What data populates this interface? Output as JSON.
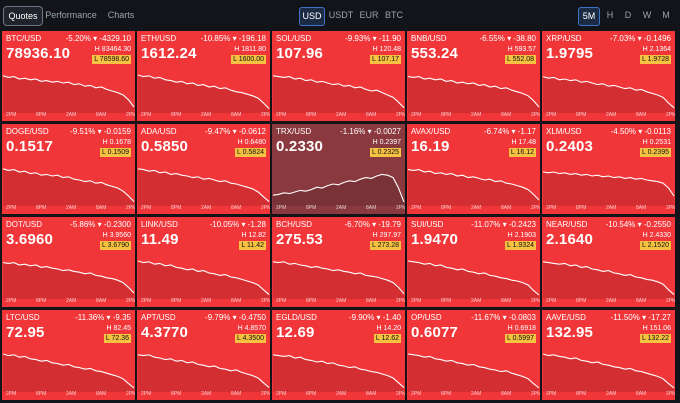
{
  "tabs": [
    "Quotes",
    "Performance",
    "Charts"
  ],
  "currencies": [
    "USD",
    "USDT",
    "EUR",
    "BTC"
  ],
  "timeframes": [
    "5M",
    "H",
    "D",
    "W",
    "M"
  ],
  "x_labels": [
    "2PM",
    "8PM",
    "2AM",
    "8AM",
    "2PM"
  ],
  "colors": {
    "down": "#f13639",
    "neutral": "#8a3a3f",
    "low_badge": "#f5c242",
    "accent": "#3d74c7"
  },
  "tiles": [
    {
      "sym": "BTC/USD",
      "change": "-5.20% ▾ -4329.10",
      "price": "78936.10",
      "high": "H 83464.30",
      "low": "L 78598.60",
      "neutral": false,
      "series": [
        0.88,
        0.84,
        0.86,
        0.8,
        0.82,
        0.78,
        0.8,
        0.74,
        0.76,
        0.72,
        0.74,
        0.7,
        0.72,
        0.66,
        0.68,
        0.62,
        0.64,
        0.58,
        0.6,
        0.54,
        0.5,
        0.46,
        0.4,
        0.28,
        0.1
      ]
    },
    {
      "sym": "ETH/USD",
      "change": "-10.85% ▾ -196.18",
      "price": "1612.24",
      "high": "H 1811.80",
      "low": "L 1600.00",
      "neutral": false,
      "series": [
        0.9,
        0.86,
        0.88,
        0.82,
        0.84,
        0.78,
        0.76,
        0.72,
        0.74,
        0.68,
        0.7,
        0.64,
        0.66,
        0.6,
        0.62,
        0.56,
        0.58,
        0.52,
        0.48,
        0.46,
        0.42,
        0.38,
        0.32,
        0.2,
        0.06
      ]
    },
    {
      "sym": "SOL/USD",
      "change": "-9.93% ▾ -11.90",
      "price": "107.96",
      "high": "H 120.48",
      "low": "L 107.17",
      "neutral": false,
      "series": [
        0.88,
        0.86,
        0.84,
        0.86,
        0.8,
        0.82,
        0.76,
        0.78,
        0.72,
        0.74,
        0.7,
        0.66,
        0.68,
        0.62,
        0.64,
        0.58,
        0.6,
        0.54,
        0.5,
        0.52,
        0.46,
        0.4,
        0.34,
        0.22,
        0.08
      ]
    },
    {
      "sym": "BNB/USD",
      "change": "-6.55% ▾ -38.80",
      "price": "553.24",
      "high": "H 593.57",
      "low": "L 552.08",
      "neutral": false,
      "series": [
        0.86,
        0.84,
        0.86,
        0.8,
        0.82,
        0.78,
        0.8,
        0.74,
        0.76,
        0.7,
        0.72,
        0.68,
        0.7,
        0.64,
        0.66,
        0.6,
        0.62,
        0.56,
        0.58,
        0.52,
        0.48,
        0.44,
        0.38,
        0.26,
        0.1
      ]
    },
    {
      "sym": "XRP/USD",
      "change": "-7.03% ▾ -0.1496",
      "price": "1.9795",
      "high": "H 2.1364",
      "low": "L 1.9728",
      "neutral": false,
      "series": [
        0.86,
        0.82,
        0.84,
        0.78,
        0.8,
        0.76,
        0.78,
        0.72,
        0.74,
        0.7,
        0.66,
        0.68,
        0.62,
        0.64,
        0.6,
        0.56,
        0.58,
        0.52,
        0.54,
        0.48,
        0.44,
        0.4,
        0.34,
        0.2,
        0.08
      ]
    },
    {
      "sym": "DOGE/USD",
      "change": "-9.51% ▾ -0.0159",
      "price": "0.1517",
      "high": "H 0.1678",
      "low": "L 0.1509",
      "neutral": false,
      "series": [
        0.88,
        0.84,
        0.86,
        0.8,
        0.82,
        0.76,
        0.78,
        0.72,
        0.74,
        0.7,
        0.72,
        0.66,
        0.68,
        0.62,
        0.6,
        0.56,
        0.58,
        0.52,
        0.54,
        0.48,
        0.44,
        0.4,
        0.32,
        0.2,
        0.06
      ]
    },
    {
      "sym": "ADA/USD",
      "change": "-9.47% ▾ -0.0612",
      "price": "0.5850",
      "high": "H 0.6480",
      "low": "L 0.5824",
      "neutral": false,
      "series": [
        0.88,
        0.86,
        0.82,
        0.84,
        0.78,
        0.8,
        0.74,
        0.76,
        0.72,
        0.7,
        0.66,
        0.68,
        0.62,
        0.64,
        0.6,
        0.56,
        0.58,
        0.52,
        0.5,
        0.46,
        0.42,
        0.38,
        0.3,
        0.18,
        0.06
      ]
    },
    {
      "sym": "TRX/USD",
      "change": "-1.16% ▾ -0.0027",
      "price": "0.2330",
      "high": "H 0.2397",
      "low": "L 0.2325",
      "neutral": true,
      "series": [
        0.22,
        0.24,
        0.28,
        0.26,
        0.3,
        0.34,
        0.32,
        0.36,
        0.42,
        0.4,
        0.46,
        0.5,
        0.48,
        0.54,
        0.58,
        0.56,
        0.62,
        0.66,
        0.64,
        0.7,
        0.74,
        0.72,
        0.66,
        0.4,
        0.05
      ]
    },
    {
      "sym": "AVAX/USD",
      "change": "-6.74% ▾ -1.17",
      "price": "16.19",
      "high": "H 17.48",
      "low": "L 16.12",
      "neutral": false,
      "series": [
        0.86,
        0.84,
        0.86,
        0.8,
        0.82,
        0.76,
        0.78,
        0.74,
        0.76,
        0.7,
        0.72,
        0.66,
        0.68,
        0.64,
        0.6,
        0.62,
        0.56,
        0.58,
        0.52,
        0.5,
        0.46,
        0.42,
        0.36,
        0.24,
        0.1
      ]
    },
    {
      "sym": "XLM/USD",
      "change": "-4.50% ▾ -0.0113",
      "price": "0.2403",
      "high": "H 0.2531",
      "low": "L 0.2395",
      "neutral": false,
      "series": [
        0.8,
        0.78,
        0.8,
        0.76,
        0.78,
        0.74,
        0.76,
        0.72,
        0.74,
        0.7,
        0.72,
        0.68,
        0.7,
        0.66,
        0.68,
        0.64,
        0.66,
        0.62,
        0.64,
        0.6,
        0.58,
        0.56,
        0.52,
        0.4,
        0.2
      ]
    },
    {
      "sym": "DOT/USD",
      "change": "-5.86% ▾ -0.2300",
      "price": "3.6960",
      "high": "H 3.9560",
      "low": "L 3.6790",
      "neutral": false,
      "series": [
        0.86,
        0.84,
        0.86,
        0.8,
        0.82,
        0.78,
        0.8,
        0.74,
        0.76,
        0.72,
        0.7,
        0.66,
        0.68,
        0.64,
        0.62,
        0.58,
        0.6,
        0.54,
        0.52,
        0.48,
        0.46,
        0.42,
        0.36,
        0.24,
        0.1
      ]
    },
    {
      "sym": "LINK/USD",
      "change": "-10.05% ▾ -1.28",
      "price": "11.49",
      "high": "H 12.82",
      "low": "L 11.42",
      "neutral": false,
      "series": [
        0.9,
        0.86,
        0.88,
        0.82,
        0.84,
        0.78,
        0.8,
        0.74,
        0.72,
        0.68,
        0.7,
        0.64,
        0.66,
        0.6,
        0.58,
        0.54,
        0.56,
        0.5,
        0.48,
        0.44,
        0.4,
        0.36,
        0.3,
        0.18,
        0.06
      ]
    },
    {
      "sym": "BCH/USD",
      "change": "-6.70% ▾ -19.79",
      "price": "275.53",
      "high": "H 297.97",
      "low": "L 273.28",
      "neutral": false,
      "series": [
        0.88,
        0.86,
        0.88,
        0.82,
        0.84,
        0.8,
        0.78,
        0.74,
        0.76,
        0.72,
        0.7,
        0.66,
        0.68,
        0.64,
        0.62,
        0.58,
        0.6,
        0.54,
        0.52,
        0.5,
        0.46,
        0.42,
        0.36,
        0.24,
        0.08
      ]
    },
    {
      "sym": "SUI/USD",
      "change": "-11.07% ▾ -0.2423",
      "price": "1.9470",
      "high": "H 2.1903",
      "low": "L 1.9324",
      "neutral": false,
      "series": [
        0.9,
        0.88,
        0.86,
        0.82,
        0.84,
        0.78,
        0.8,
        0.74,
        0.72,
        0.68,
        0.7,
        0.64,
        0.62,
        0.58,
        0.6,
        0.54,
        0.52,
        0.48,
        0.46,
        0.42,
        0.4,
        0.36,
        0.3,
        0.16,
        0.05
      ]
    },
    {
      "sym": "NEAR/USD",
      "change": "-10.54% ▾ -0.2550",
      "price": "2.1640",
      "high": "H 2.4330",
      "low": "L 2.1520",
      "neutral": false,
      "series": [
        0.88,
        0.86,
        0.84,
        0.82,
        0.84,
        0.78,
        0.8,
        0.74,
        0.76,
        0.7,
        0.68,
        0.64,
        0.66,
        0.6,
        0.58,
        0.54,
        0.56,
        0.5,
        0.48,
        0.44,
        0.42,
        0.38,
        0.32,
        0.18,
        0.06
      ]
    },
    {
      "sym": "LTC/USD",
      "change": "-11.36% ▾ -9.35",
      "price": "72.95",
      "high": "H 82.45",
      "low": "L 72.36",
      "neutral": false,
      "series": [
        0.9,
        0.86,
        0.88,
        0.82,
        0.84,
        0.78,
        0.76,
        0.72,
        0.74,
        0.68,
        0.66,
        0.62,
        0.64,
        0.58,
        0.56,
        0.52,
        0.54,
        0.48,
        0.46,
        0.42,
        0.38,
        0.34,
        0.28,
        0.16,
        0.05
      ]
    },
    {
      "sym": "APT/USD",
      "change": "-9.79% ▾ -0.4750",
      "price": "4.3770",
      "high": "H 4.8570",
      "low": "L 4.3500",
      "neutral": false,
      "series": [
        0.88,
        0.86,
        0.88,
        0.82,
        0.8,
        0.76,
        0.78,
        0.72,
        0.74,
        0.68,
        0.7,
        0.64,
        0.62,
        0.58,
        0.6,
        0.54,
        0.52,
        0.48,
        0.5,
        0.44,
        0.4,
        0.36,
        0.3,
        0.18,
        0.06
      ]
    },
    {
      "sym": "EGLD/USD",
      "change": "-9.90% ▾ -1.40",
      "price": "12.69",
      "high": "H 14.20",
      "low": "L 12.62",
      "neutral": false,
      "series": [
        0.88,
        0.86,
        0.84,
        0.86,
        0.8,
        0.82,
        0.76,
        0.74,
        0.7,
        0.72,
        0.66,
        0.68,
        0.62,
        0.6,
        0.56,
        0.58,
        0.52,
        0.5,
        0.46,
        0.44,
        0.4,
        0.36,
        0.3,
        0.18,
        0.06
      ]
    },
    {
      "sym": "OP/USD",
      "change": "-11.67% ▾ -0.0803",
      "price": "0.6077",
      "high": "H 0.6918",
      "low": "L 0.5997",
      "neutral": false,
      "series": [
        0.9,
        0.88,
        0.86,
        0.82,
        0.84,
        0.78,
        0.76,
        0.72,
        0.74,
        0.68,
        0.66,
        0.62,
        0.64,
        0.58,
        0.56,
        0.52,
        0.5,
        0.46,
        0.48,
        0.42,
        0.38,
        0.34,
        0.28,
        0.16,
        0.05
      ]
    },
    {
      "sym": "AAVE/USD",
      "change": "-11.50% ▾ -17.27",
      "price": "132.95",
      "high": "H 151.06",
      "low": "L 132.22",
      "neutral": false,
      "series": [
        0.9,
        0.86,
        0.88,
        0.84,
        0.82,
        0.78,
        0.8,
        0.74,
        0.72,
        0.68,
        0.7,
        0.64,
        0.62,
        0.58,
        0.56,
        0.52,
        0.54,
        0.48,
        0.46,
        0.42,
        0.38,
        0.34,
        0.28,
        0.16,
        0.05
      ]
    }
  ]
}
